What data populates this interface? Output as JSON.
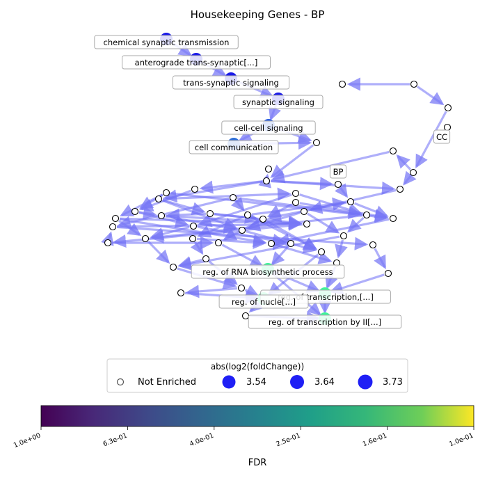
{
  "title": "Housekeeping Genes - BP",
  "node_labels": [
    "chemical synaptic transmission",
    "anterograde trans-synaptic[...]",
    "trans-synaptic signaling",
    "synaptic signaling",
    "cell-cell signaling",
    "cell communication",
    "CC",
    "BP",
    "reg. of RNA biosynthetic process",
    "reg. of transcription,[...]",
    "reg. of nucle[...]",
    "reg. of transcription by II[...]"
  ],
  "legend": {
    "title": "abs(log2(foldChange))",
    "entries": [
      {
        "label": "Not Enriched",
        "value": null,
        "color": "#ffffff"
      },
      {
        "label": "3.54",
        "value": 3.54,
        "color": "#1f1ff5"
      },
      {
        "label": "3.64",
        "value": 3.64,
        "color": "#1f1ff5"
      },
      {
        "label": "3.73",
        "value": 3.73,
        "color": "#1f1ff5"
      }
    ]
  },
  "colorbar": {
    "label": "FDR",
    "ticks": [
      "1.0e+00",
      "6.3e-01",
      "4.0e-01",
      "2.5e-01",
      "1.6e-01",
      "1.0e-01"
    ],
    "colormap": "viridis"
  },
  "colors": {
    "edge": "#6e6ef5",
    "node_enriched_blue": "#1a1ae8",
    "node_enriched_mid": "#2f6fd8",
    "node_enriched_green": "#3ef59a",
    "node_plain": "#ffffff"
  }
}
